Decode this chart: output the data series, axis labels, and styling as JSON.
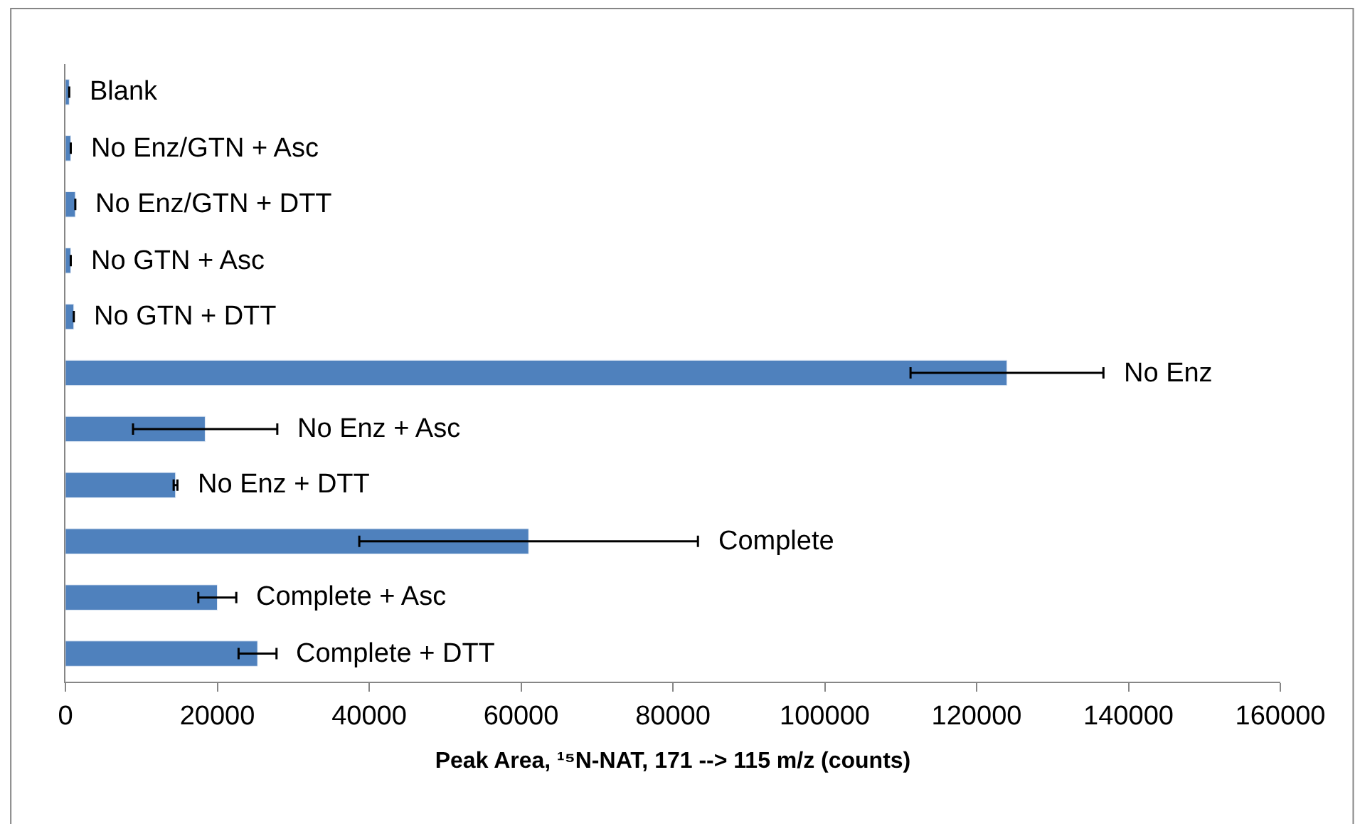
{
  "chart_data": {
    "type": "bar",
    "orientation": "horizontal",
    "xlabel": "Peak Area, ¹⁵N-NAT, 171 --> 115 m/z (counts)",
    "categories": [
      "Blank",
      "No Enz/GTN + Asc",
      "No Enz/GTN + DTT",
      "No GTN + Asc",
      "No GTN + DTT",
      "No Enz",
      "No Enz + Asc",
      "No Enz + DTT",
      "Complete",
      "Complete + Asc",
      "Complete + DTT"
    ],
    "values": [
      500,
      700,
      1300,
      700,
      1100,
      124000,
      18400,
      14500,
      61000,
      20000,
      25300
    ],
    "errors": [
      null,
      null,
      null,
      null,
      null,
      12700,
      9500,
      250,
      22300,
      2500,
      2500
    ],
    "color": "#4f81bd",
    "xlim": [
      0,
      160000
    ],
    "xticks": [
      0,
      20000,
      40000,
      60000,
      80000,
      100000,
      120000,
      140000,
      160000
    ],
    "tick_labels": "x"
  }
}
